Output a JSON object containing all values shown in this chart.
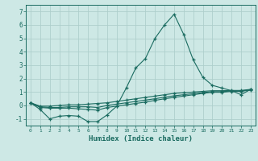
{
  "title": "",
  "xlabel": "Humidex (Indice chaleur)",
  "ylabel": "",
  "xlim": [
    -0.5,
    23.5
  ],
  "ylim": [
    -1.5,
    7.5
  ],
  "yticks": [
    -1,
    0,
    1,
    2,
    3,
    4,
    5,
    6,
    7
  ],
  "xticks": [
    0,
    1,
    2,
    3,
    4,
    5,
    6,
    7,
    8,
    9,
    10,
    11,
    12,
    13,
    14,
    15,
    16,
    17,
    18,
    19,
    20,
    21,
    22,
    23
  ],
  "background_color": "#cde8e5",
  "grid_color": "#aecfcc",
  "line_color": "#1a6b60",
  "series": [
    [
      0.2,
      -0.3,
      -1.0,
      -0.8,
      -0.75,
      -0.8,
      -1.2,
      -1.2,
      -0.7,
      -0.05,
      1.3,
      2.8,
      3.5,
      5.0,
      6.0,
      6.8,
      5.3,
      3.4,
      2.1,
      1.5,
      1.3,
      1.1,
      0.8,
      1.2
    ],
    [
      0.2,
      -0.05,
      -0.05,
      -0.0,
      0.05,
      0.05,
      0.1,
      0.15,
      0.2,
      0.3,
      0.4,
      0.5,
      0.6,
      0.7,
      0.8,
      0.9,
      0.95,
      1.0,
      1.05,
      1.1,
      1.1,
      1.12,
      1.12,
      1.2
    ],
    [
      0.2,
      -0.1,
      -0.15,
      -0.15,
      -0.1,
      -0.1,
      -0.1,
      -0.15,
      0.0,
      0.1,
      0.2,
      0.3,
      0.4,
      0.5,
      0.62,
      0.72,
      0.8,
      0.88,
      0.96,
      1.03,
      1.03,
      1.08,
      1.08,
      1.18
    ],
    [
      0.2,
      -0.15,
      -0.2,
      -0.2,
      -0.2,
      -0.25,
      -0.3,
      -0.35,
      -0.15,
      -0.05,
      0.05,
      0.15,
      0.25,
      0.38,
      0.5,
      0.6,
      0.7,
      0.8,
      0.9,
      0.98,
      0.98,
      1.05,
      1.05,
      1.15
    ]
  ]
}
